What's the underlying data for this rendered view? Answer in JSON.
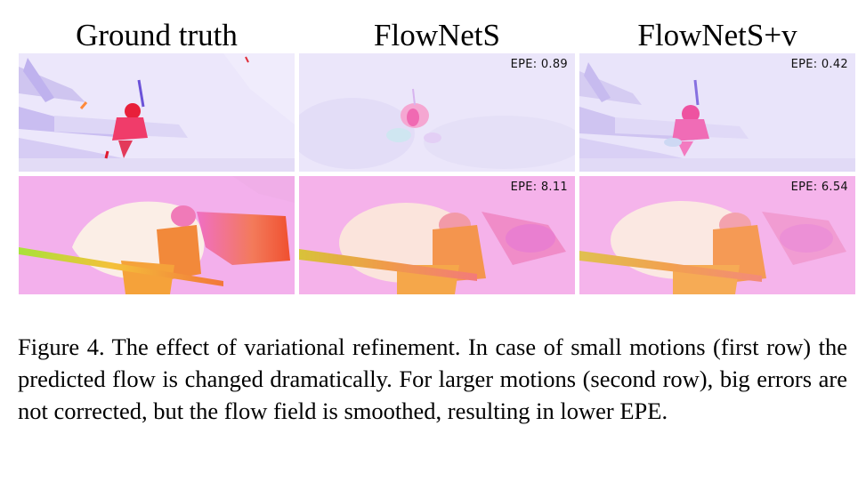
{
  "columns": [
    "Ground truth",
    "FlowNetS",
    "FlowNetS+v"
  ],
  "rows": [
    {
      "epe": [
        "",
        "EPE: 0.89",
        "EPE: 0.42"
      ]
    },
    {
      "epe": [
        "",
        "EPE: 8.11",
        "EPE: 6.54"
      ]
    }
  ],
  "caption": "Figure 4. The effect of variational refinement.  In case of small motions (first row) the predicted flow is changed dramatically. For larger motions (second row), big errors are not corrected, but the flow field is smoothed, resulting in lower EPE."
}
